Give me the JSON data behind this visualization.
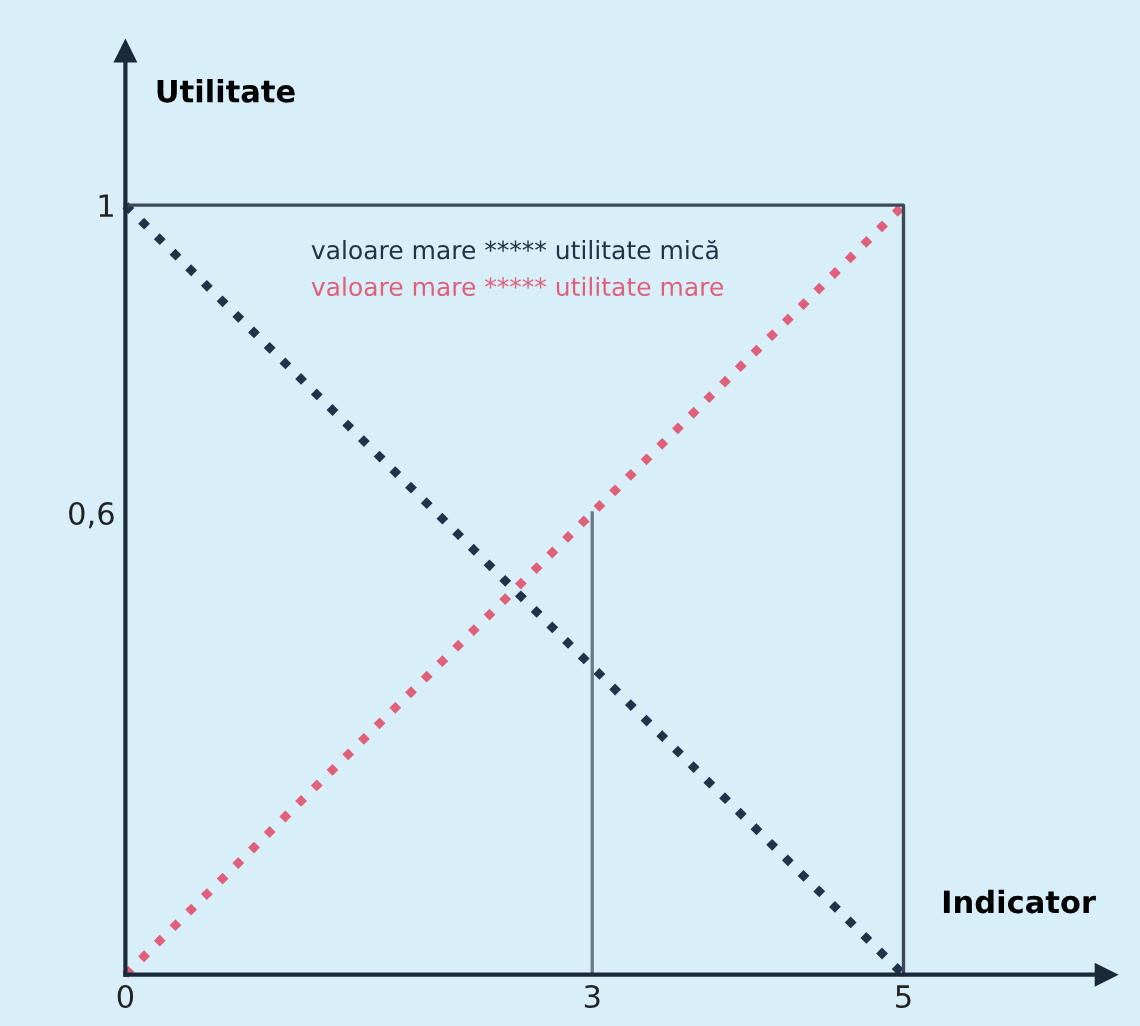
{
  "chart_data": {
    "type": "line",
    "xlabel": "Indicator",
    "ylabel": "Utilitate",
    "xlim": [
      0,
      6.3
    ],
    "ylim": [
      0,
      1.2
    ],
    "xticks": [
      0,
      3,
      5
    ],
    "yticks": [
      {
        "value": 0.6,
        "label": "0,6"
      },
      1
    ],
    "grid": false,
    "legend": "top",
    "marker": "none",
    "series": [
      {
        "name": "valoare mare ***** utilitate mică",
        "color": "#1e3448",
        "x": [
          0,
          5
        ],
        "values": [
          1,
          0
        ],
        "line_style": "dotted"
      },
      {
        "name": "valoare mare ***** utilitate mare",
        "color": "#e0607a",
        "x": [
          0,
          5
        ],
        "values": [
          0,
          1
        ],
        "line_style": "dotted"
      },
      {
        "color": "#3a4a58",
        "x": [
          0,
          5,
          5
        ],
        "values": [
          1,
          1,
          0
        ],
        "line_style": "solid"
      },
      {
        "color": "#6a7a88",
        "x": [
          3,
          3
        ],
        "values": [
          0,
          0.6
        ],
        "line_style": "solid"
      }
    ]
  }
}
